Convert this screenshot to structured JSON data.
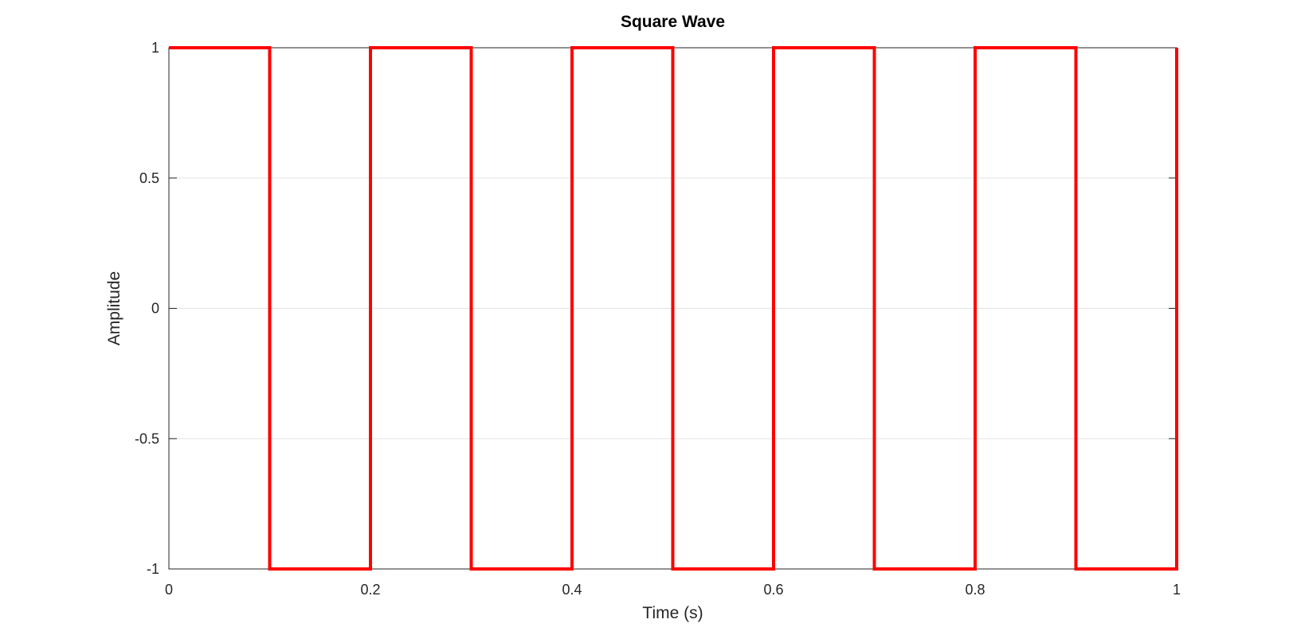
{
  "chart_data": {
    "type": "line",
    "title": "Square Wave",
    "xlabel": "Time (s)",
    "ylabel": "Amplitude",
    "xlim": [
      0,
      1
    ],
    "ylim": [
      -1,
      1
    ],
    "x_ticks": [
      0,
      0.2,
      0.4,
      0.6,
      0.8,
      1
    ],
    "x_tick_labels": [
      "0",
      "0.2",
      "0.4",
      "0.6",
      "0.8",
      "1"
    ],
    "y_ticks": [
      -1,
      -0.5,
      0,
      0.5,
      1
    ],
    "y_tick_labels": [
      "-1",
      "-0.5",
      "0",
      "0.5",
      "1"
    ],
    "grid": "horizontal",
    "series": [
      {
        "color": "#ff0000",
        "x": [
          0,
          0.1,
          0.1,
          0.2,
          0.2,
          0.3,
          0.3,
          0.4,
          0.4,
          0.5,
          0.5,
          0.6,
          0.6,
          0.7,
          0.7,
          0.8,
          0.8,
          0.9,
          0.9,
          1.0,
          1.0
        ],
        "y": [
          1,
          1,
          -1,
          -1,
          1,
          1,
          -1,
          -1,
          1,
          1,
          -1,
          -1,
          1,
          1,
          -1,
          -1,
          1,
          1,
          -1,
          -1,
          1
        ]
      }
    ],
    "colors": {
      "grid": "#e3e3e3",
      "axes": "#262626",
      "text": "#262626"
    }
  }
}
